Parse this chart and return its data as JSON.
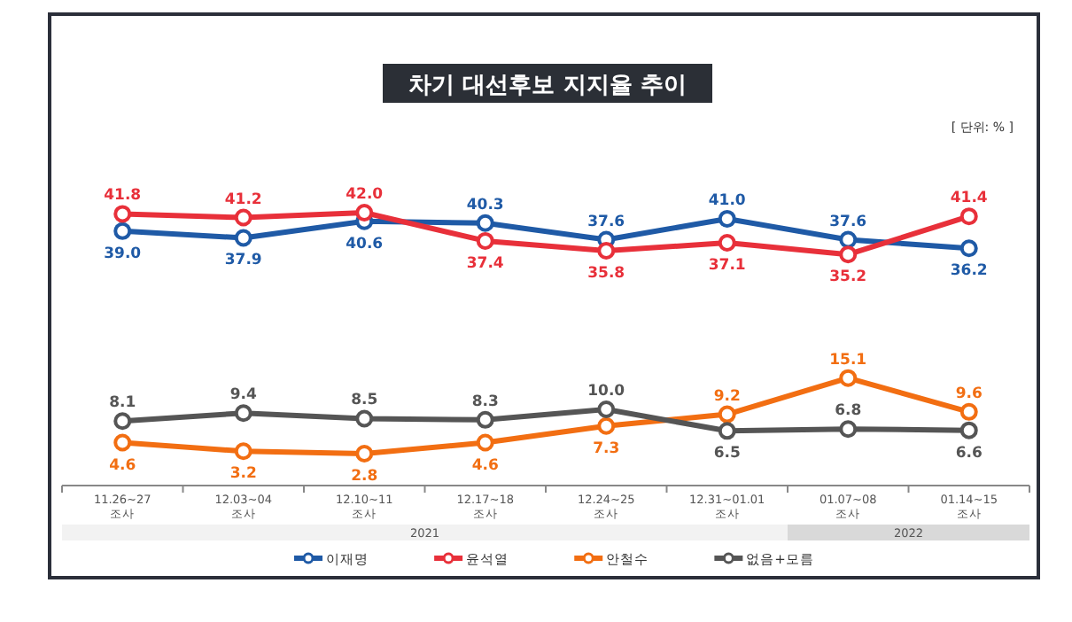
{
  "chart_data": {
    "type": "line",
    "title": "차기 대선후보 지지율 추이",
    "marker": "circle",
    "legend": "bottom",
    "grid": false,
    "categories": [
      "11.26~27\n조사",
      "12.03~04\n조사",
      "12.10~11\n조사",
      "12.17~18\n조사",
      "12.24~25\n조사",
      "12.31~01.01\n조사",
      "01.07~08\n조사",
      "01.14~15\n조사"
    ],
    "series": [
      {
        "name": "이재명",
        "color": "#1f5aa6",
        "values": [
          39.0,
          37.9,
          40.6,
          40.3,
          37.6,
          41.0,
          37.6,
          36.2
        ],
        "value_labels": [
          "39.0",
          "37.9",
          "40.6",
          "40.3",
          "37.6",
          "41.0",
          "37.6",
          "36.2"
        ]
      },
      {
        "name": "윤석열",
        "color": "#e8303a",
        "values": [
          41.8,
          41.2,
          42.0,
          37.4,
          35.8,
          37.1,
          35.2,
          41.4
        ],
        "value_labels": [
          "41.8",
          "41.2",
          "42.0",
          "37.4",
          "35.8",
          "37.1",
          "35.2",
          "41.4"
        ]
      },
      {
        "name": "안철수",
        "color": "#f26e12",
        "values": [
          4.6,
          3.2,
          2.8,
          4.6,
          7.3,
          9.2,
          15.1,
          9.6
        ],
        "value_labels": [
          "4.6",
          "3.2",
          "2.8",
          "4.6",
          "7.3",
          "9.2",
          "15.1",
          "9.6"
        ]
      },
      {
        "name": "없음+모름",
        "color": "#555555",
        "values": [
          8.1,
          9.4,
          8.5,
          8.3,
          10.0,
          6.5,
          6.8,
          6.6
        ],
        "value_labels": [
          "8.1",
          "9.4",
          "8.5",
          "8.3",
          "10.0",
          "6.5",
          "6.8",
          "6.6"
        ]
      }
    ],
    "annotations": [
      "[ 단위: % ]",
      "2021",
      "2022"
    ]
  }
}
